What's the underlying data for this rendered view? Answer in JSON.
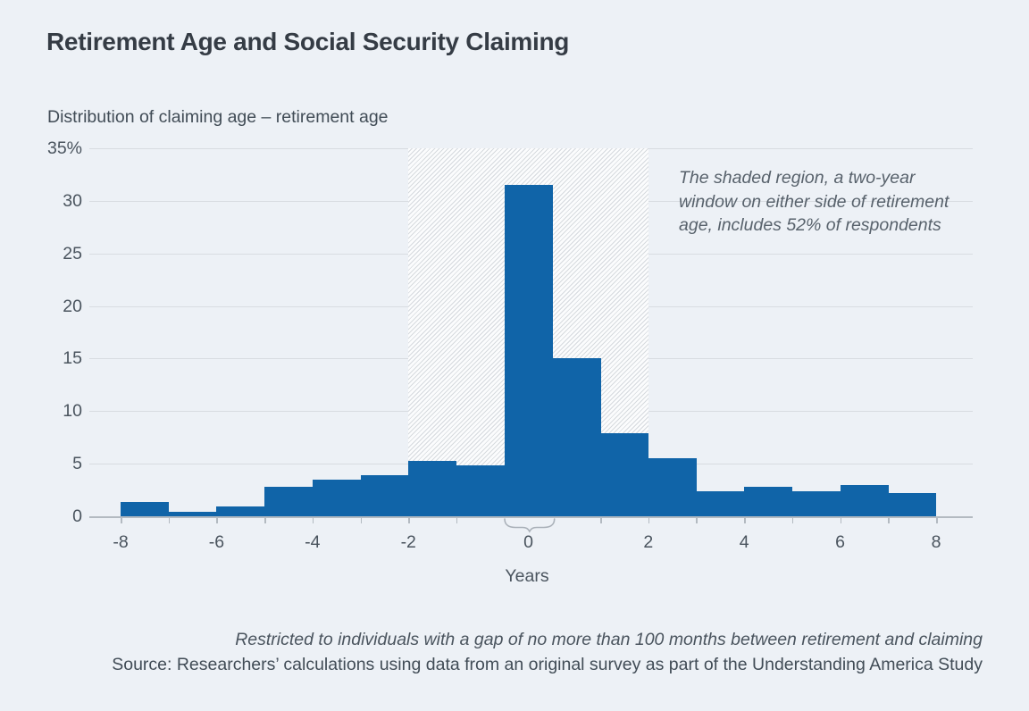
{
  "header": {
    "title": "Retirement Age and Social Security Claiming"
  },
  "chart_data": {
    "type": "bar",
    "subtype": "histogram",
    "title": "Distribution of claiming age – retirement age",
    "categories": [
      -8,
      -7,
      -6,
      -5,
      -4,
      -3,
      -2,
      -1,
      0,
      1,
      2,
      3,
      4,
      5,
      6,
      7,
      8
    ],
    "values": [
      1.4,
      0.4,
      0.9,
      2.8,
      3.5,
      3.9,
      5.3,
      4.8,
      31.5,
      15.0,
      7.9,
      5.5,
      2.4,
      2.8,
      2.4,
      3.0,
      2.2
    ],
    "xlabel": "Years",
    "ylabel": "",
    "ylim": [
      0,
      35
    ],
    "yticks": [
      0,
      5,
      10,
      15,
      20,
      25,
      30,
      35
    ],
    "ytick_labels": [
      "0",
      "5",
      "10",
      "15",
      "20",
      "25",
      "30",
      "35%"
    ],
    "xtick_values": [
      -8,
      -6,
      -4,
      -2,
      0,
      2,
      4,
      6,
      8
    ],
    "xtick_labels": [
      "-8",
      "-6",
      "-4",
      "-2",
      "0",
      "2",
      "4",
      "6",
      "8"
    ],
    "grid": "horizontal",
    "legend": "none",
    "bar_color": "#1064a8",
    "shaded_region": {
      "from_year": -2,
      "to_year": 2,
      "style": "diagonal-hatch",
      "includes_pct": "52%"
    },
    "brace": {
      "under_year": 0
    },
    "annotation": {
      "lines": [
        "The shaded region, a two-year",
        "window on either side of retirement",
        "age, includes 52% of respondents"
      ]
    }
  },
  "notes": {
    "footnote": "Restricted to individuals with a gap of no more than 100 months between retirement and claiming",
    "source": "Source: Researchers’ calculations using data from an original survey as part of the Understanding America Study"
  },
  "colors": {
    "background": "#edf1f6",
    "bar_blue": "#1064a8",
    "hatch_line": "#d6dade",
    "gridline": "#d8dce1",
    "axis": "#b3bac1",
    "title_text": "#353c45",
    "body_text": "#4a545e"
  }
}
